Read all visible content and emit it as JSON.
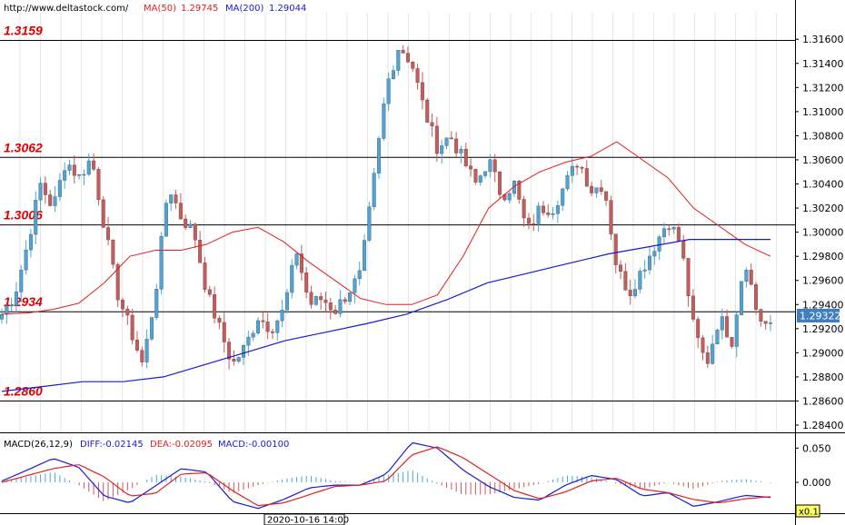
{
  "header": {
    "source": "http://www.deltastock.com/",
    "ma50_label": "MA(50)",
    "ma50_value": "1.29745",
    "ma200_label": "MA(200)",
    "ma200_value": "1.29044"
  },
  "macd_header": {
    "title": "MACD(26,12,9)",
    "diff": "DIFF:-0.02145",
    "dea": "DEA:-0.02095",
    "macd": "MACD:-0.00100"
  },
  "current_price": "1.29322",
  "time_label": "2020-10-16 14:00",
  "zoom_label": "x0.1",
  "colors": {
    "bull": "#4aa6d8",
    "bear": "#c85a5a",
    "ma50": "#e02020",
    "ma200": "#1a1ad0",
    "level_text": "#e00000",
    "price_box": "#3f7fbf"
  },
  "chart_data": {
    "type": "candlestick",
    "main_axis": {
      "ylim": [
        1.2834,
        1.3182
      ],
      "ticks": [
        "1.31600",
        "1.31400",
        "1.31200",
        "1.31000",
        "1.30800",
        "1.30600",
        "1.30400",
        "1.30200",
        "1.30000",
        "1.29800",
        "1.29600",
        "1.29400",
        "1.29200",
        "1.29000",
        "1.28800",
        "1.28600",
        "1.28400"
      ]
    },
    "levels": [
      {
        "label": "1.3159",
        "value": 1.3159
      },
      {
        "label": "1.3062",
        "value": 1.3062
      },
      {
        "label": "1.3006",
        "value": 1.3006
      },
      {
        "label": "1.2934",
        "value": 1.2934
      },
      {
        "label": "1.2860",
        "value": 1.286
      }
    ],
    "close_anchors": [
      1.2932,
      1.2948,
      1.299,
      1.304,
      1.302,
      1.306,
      1.3045,
      1.3062,
      1.3005,
      1.295,
      1.292,
      1.289,
      1.295,
      1.304,
      1.3012,
      1.3,
      1.295,
      1.292,
      1.289,
      1.2905,
      1.293,
      1.292,
      1.2935,
      1.2985,
      1.294,
      1.2945,
      1.2935,
      1.295,
      1.2965,
      1.304,
      1.312,
      1.3155,
      1.314,
      1.31,
      1.307,
      1.308,
      1.306,
      1.304,
      1.306,
      1.303,
      1.304,
      1.3,
      1.302,
      1.302,
      1.304,
      1.306,
      1.3035,
      1.304,
      1.297,
      1.295,
      1.297,
      1.299,
      1.301,
      1.299,
      1.292,
      1.289,
      1.293,
      1.291,
      1.298,
      1.293,
      1.292
    ],
    "ma50": [
      1.2932,
      1.2933,
      1.2936,
      1.2941,
      1.2958,
      1.298,
      1.2985,
      1.2985,
      1.299,
      1.3,
      1.3004,
      1.2992,
      1.2975,
      1.296,
      1.2945,
      1.294,
      1.294,
      1.2948,
      1.298,
      1.302,
      1.3038,
      1.305,
      1.3058,
      1.3063,
      1.3075,
      1.306,
      1.3045,
      1.302,
      1.3005,
      1.299,
      1.298
    ],
    "ma200": [
      1.2868,
      1.2872,
      1.2876,
      1.2876,
      1.288,
      1.289,
      1.29,
      1.291,
      1.2917,
      1.2924,
      1.2932,
      1.2944,
      1.2958,
      1.2966,
      1.2974,
      1.2982,
      1.2988,
      1.2994,
      1.2994,
      1.2994
    ],
    "macd_axis": {
      "ylim": [
        -0.045,
        0.065
      ],
      "ticks": [
        "0.050",
        "0.000"
      ]
    },
    "macd_diff": [
      0.002,
      0.018,
      0.035,
      0.022,
      -0.02,
      -0.03,
      -0.005,
      0.02,
      0.015,
      -0.028,
      -0.038,
      -0.025,
      -0.008,
      -0.004,
      -0.004,
      0.012,
      0.058,
      0.05,
      0.018,
      -0.006,
      -0.022,
      -0.026,
      -0.004,
      0.01,
      0.004,
      -0.02,
      -0.015,
      -0.035,
      -0.028,
      -0.019,
      -0.022
    ],
    "macd_dea": [
      0.0,
      0.01,
      0.02,
      0.026,
      0.008,
      -0.02,
      -0.016,
      0.012,
      0.014,
      -0.012,
      -0.034,
      -0.03,
      -0.018,
      -0.006,
      -0.004,
      0.002,
      0.04,
      0.052,
      0.036,
      0.012,
      -0.012,
      -0.024,
      -0.014,
      0.002,
      0.006,
      -0.01,
      -0.015,
      -0.025,
      -0.03,
      -0.024,
      -0.021
    ]
  }
}
